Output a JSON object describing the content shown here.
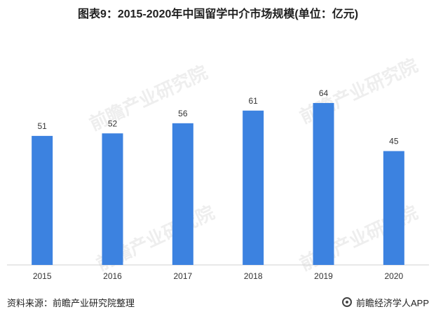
{
  "title": "图表9：2015-2020年中国留学中介市场规模(单位：亿元)",
  "footer": {
    "source": "资料来源：前瞻产业研究院整理",
    "credit": "前瞻经济学人APP"
  },
  "watermark_text": "前瞻产业研究院",
  "colors": {
    "bar": "#3c82e0",
    "axis": "#d0d0d0"
  },
  "chart_data": {
    "type": "bar",
    "categories": [
      "2015",
      "2016",
      "2017",
      "2018",
      "2019",
      "2020"
    ],
    "values": [
      51,
      52,
      56,
      61,
      64,
      45
    ],
    "title": "图表9：2015-2020年中国留学中介市场规模(单位：亿元)",
    "xlabel": "",
    "ylabel": "",
    "ylim": [
      0,
      80
    ],
    "grid": false,
    "legend": "none"
  }
}
